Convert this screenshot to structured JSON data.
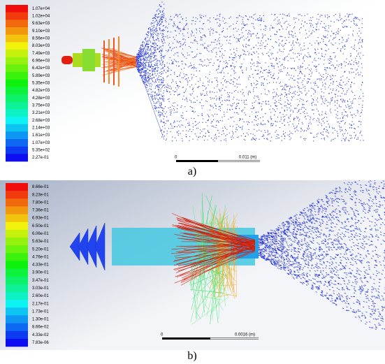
{
  "panels": [
    {
      "legend": [
        "1.07e+04",
        "1.02e+04",
        "9.63e+03",
        "9.10e+03",
        "8.56e+03",
        "8.03e+03",
        "7.49e+03",
        "6.96e+03",
        "6.42e+03",
        "5.89e+03",
        "5.35e+03",
        "4.82e+03",
        "4.28e+03",
        "3.75e+03",
        "3.21e+03",
        "2.68e+03",
        "2.14e+03",
        "1.61e+03",
        "1.07e+03",
        "5.35e+02",
        "2.27e-01"
      ],
      "scale": {
        "start": "0",
        "end": "0.011 (m)"
      },
      "caption": "a)"
    },
    {
      "legend": [
        "8.66e-01",
        "8.23e-01",
        "7.80e-01",
        "7.36e-01",
        "6.93e-01",
        "6.50e-01",
        "6.06e-01",
        "5.63e-01",
        "5.20e-01",
        "4.76e-01",
        "4.33e-01",
        "3.90e-01",
        "3.47e-01",
        "3.03e-01",
        "2.60e-01",
        "2.17e-01",
        "1.73e-01",
        "1.30e-01",
        "8.66e-02",
        "4.33e-02",
        "7.83e-06"
      ],
      "scale": {
        "start": "0",
        "end": "0.0016 (m)"
      },
      "caption": "b)"
    }
  ]
}
